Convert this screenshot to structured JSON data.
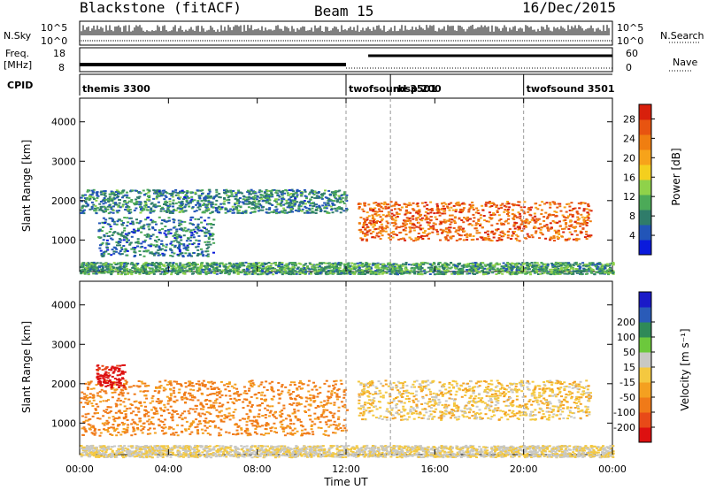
{
  "header": {
    "radar": "Blackstone (fitACF)",
    "beam": "Beam 15",
    "date": "16/Dec/2015"
  },
  "strips": {
    "nsky_label": "N.Sky",
    "nsky_ticks": [
      "10^5",
      "10^0"
    ],
    "nsearch_label": "N.Search",
    "freq_label_1": "Freq.",
    "freq_label_2": "[MHz]",
    "freq_ticks": [
      "18",
      "8"
    ],
    "nave_label": "Nave",
    "nave_ticks": [
      "60",
      "0"
    ],
    "cpid_label": "CPID",
    "cpid_segments": [
      {
        "name": "themis 3300",
        "start_h": 0
      },
      {
        "name": "twofsound 3501",
        "start_h": 12
      },
      {
        "name": "rbsp 200",
        "start_h": 14
      },
      {
        "name": "twofsound 3501",
        "start_h": 20
      }
    ]
  },
  "chart_data": [
    {
      "type": "heatmap",
      "title": "",
      "xlabel": "",
      "ylabel": "Slant Range [km]",
      "xlim": [
        0,
        24
      ],
      "ylim": [
        200,
        4600
      ],
      "ytick_values": [
        1000,
        2000,
        3000,
        4000
      ],
      "ytick_labels": [
        "1000",
        "2000",
        "3000",
        "4000"
      ],
      "colorbar": {
        "label": "Power [dB]",
        "tick_values": [
          4,
          8,
          12,
          16,
          20,
          24,
          28
        ],
        "tick_labels": [
          "4",
          "8",
          "12",
          "16",
          "20",
          "24",
          "28"
        ],
        "range": [
          0,
          31
        ],
        "colors": [
          "#0a1adc",
          "#2255b8",
          "#2f7c6a",
          "#4caa58",
          "#8fd24a",
          "#f4cf1e",
          "#f7a31a",
          "#f07e10",
          "#e85410",
          "#d8200c"
        ]
      },
      "scatter_regions": [
        {
          "t_start": 0.0,
          "t_end": 12.0,
          "range_center": 2000,
          "range_width": 300,
          "power_db": 8
        },
        {
          "t_start": 0.8,
          "t_end": 6.0,
          "range_center": 1100,
          "range_width": 500,
          "power_db": 7
        },
        {
          "t_start": 12.5,
          "t_end": 23.0,
          "range_center": 1500,
          "range_width": 500,
          "power_db": 25
        },
        {
          "t_start": 0.0,
          "t_end": 24.0,
          "range_center": 300,
          "range_width": 150,
          "power_db": 10
        }
      ]
    },
    {
      "type": "heatmap",
      "title": "",
      "xlabel": "Time UT",
      "ylabel": "Slant Range [km]",
      "xlim": [
        0,
        24
      ],
      "ylim": [
        200,
        4600
      ],
      "xtick_values": [
        0,
        4,
        8,
        12,
        16,
        20,
        24
      ],
      "xtick_labels": [
        "00:00",
        "04:00",
        "08:00",
        "12:00",
        "16:00",
        "20:00",
        "00:00"
      ],
      "ytick_values": [
        1000,
        2000,
        3000,
        4000
      ],
      "ytick_labels": [
        "1000",
        "2000",
        "3000",
        "4000"
      ],
      "colorbar": {
        "label": "Velocity [m s⁻¹]",
        "tick_values": [
          -200,
          -100,
          -50,
          -15,
          15,
          50,
          100,
          200
        ],
        "tick_labels": [
          "-200",
          "-100",
          "-50",
          "-15",
          "15",
          "50",
          "100",
          "200"
        ],
        "colors": [
          "#dd1010",
          "#e84a18",
          "#f07a18",
          "#f4a020",
          "#f4c840",
          "#c8c8c4",
          "#6cc83c",
          "#2f8a58",
          "#2a5bb8",
          "#1a1ac8"
        ]
      },
      "scatter_regions": [
        {
          "t_start": 0.0,
          "t_end": 12.0,
          "range_center": 1400,
          "range_width": 700,
          "velocity": -60
        },
        {
          "t_start": 0.7,
          "t_end": 2.0,
          "range_center": 2200,
          "range_width": 300,
          "velocity": -220
        },
        {
          "t_start": 12.5,
          "t_end": 23.0,
          "range_center": 1600,
          "range_width": 500,
          "velocity": 0
        },
        {
          "t_start": 0.0,
          "t_end": 24.0,
          "range_center": 300,
          "range_width": 150,
          "velocity": 20
        }
      ]
    }
  ]
}
